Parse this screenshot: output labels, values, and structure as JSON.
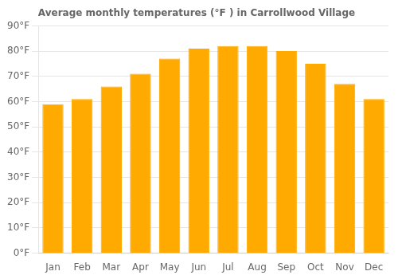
{
  "chart_data": {
    "type": "bar",
    "title": "Average monthly temperatures (°F ) in Carrollwood Village",
    "categories": [
      "Jan",
      "Feb",
      "Mar",
      "Apr",
      "May",
      "Jun",
      "Jul",
      "Aug",
      "Sep",
      "Oct",
      "Nov",
      "Dec"
    ],
    "values": [
      59,
      61,
      66,
      71,
      77,
      81,
      82,
      82,
      80,
      75,
      67,
      61
    ],
    "color": "#FFAA00",
    "ylim": [
      0,
      90
    ],
    "yticks": [
      {
        "value": 0,
        "label": "0°F"
      },
      {
        "value": 10,
        "label": "10°F"
      },
      {
        "value": 20,
        "label": "20°F"
      },
      {
        "value": 30,
        "label": "30°F"
      },
      {
        "value": 40,
        "label": "40°F"
      },
      {
        "value": 50,
        "label": "50°F"
      },
      {
        "value": 60,
        "label": "60°F"
      },
      {
        "value": 70,
        "label": "70°F"
      },
      {
        "value": 80,
        "label": "80°F"
      },
      {
        "value": 90,
        "label": "90°F"
      }
    ],
    "grid": true
  }
}
